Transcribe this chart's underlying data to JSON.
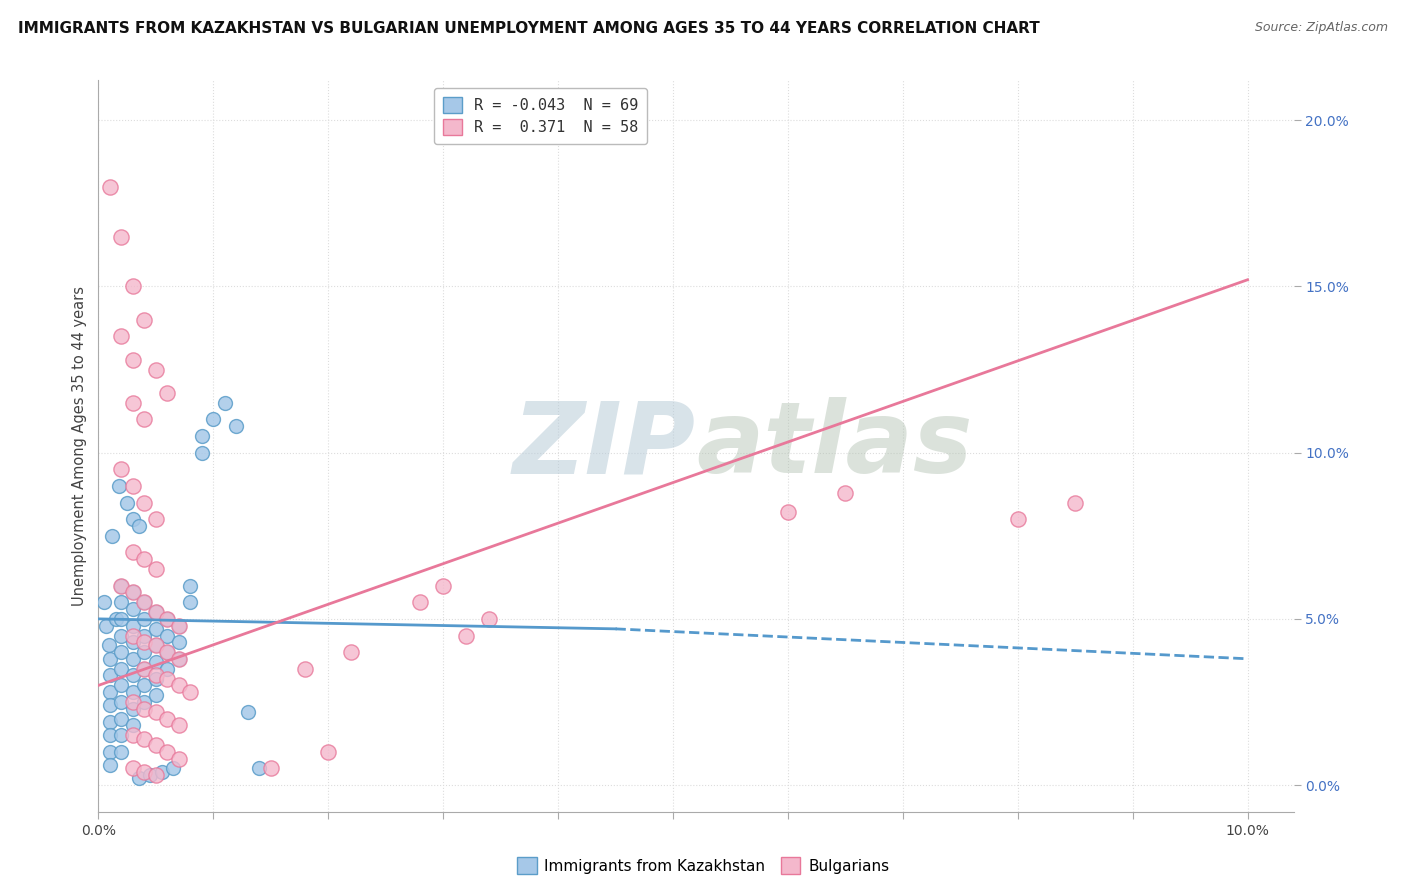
{
  "title": "IMMIGRANTS FROM KAZAKHSTAN VS BULGARIAN UNEMPLOYMENT AMONG AGES 35 TO 44 YEARS CORRELATION CHART",
  "source_text": "Source: ZipAtlas.com",
  "ylabel": "Unemployment Among Ages 35 to 44 years",
  "xlim": [
    0.0,
    0.104
  ],
  "ylim": [
    -0.008,
    0.212
  ],
  "xticks": [
    0.0,
    0.01,
    0.02,
    0.03,
    0.04,
    0.05,
    0.06,
    0.07,
    0.08,
    0.09,
    0.1
  ],
  "xtick_labels": [
    "0.0%",
    "",
    "",
    "",
    "",
    "",
    "",
    "",
    "",
    "",
    "10.0%"
  ],
  "yticks": [
    0.0,
    0.05,
    0.1,
    0.15,
    0.2
  ],
  "ytick_labels": [
    "0.0%",
    "5.0%",
    "10.0%",
    "15.0%",
    "20.0%"
  ],
  "r_blue": "-0.043",
  "n_blue": "69",
  "r_pink": "0.371",
  "n_pink": "58",
  "blue_scatter": [
    [
      0.0005,
      0.055
    ],
    [
      0.0007,
      0.048
    ],
    [
      0.0009,
      0.042
    ],
    [
      0.001,
      0.038
    ],
    [
      0.001,
      0.033
    ],
    [
      0.001,
      0.028
    ],
    [
      0.001,
      0.024
    ],
    [
      0.001,
      0.019
    ],
    [
      0.001,
      0.015
    ],
    [
      0.001,
      0.01
    ],
    [
      0.001,
      0.006
    ],
    [
      0.0015,
      0.05
    ],
    [
      0.002,
      0.06
    ],
    [
      0.002,
      0.055
    ],
    [
      0.002,
      0.05
    ],
    [
      0.002,
      0.045
    ],
    [
      0.002,
      0.04
    ],
    [
      0.002,
      0.035
    ],
    [
      0.002,
      0.03
    ],
    [
      0.002,
      0.025
    ],
    [
      0.002,
      0.02
    ],
    [
      0.002,
      0.015
    ],
    [
      0.002,
      0.01
    ],
    [
      0.003,
      0.058
    ],
    [
      0.003,
      0.053
    ],
    [
      0.003,
      0.048
    ],
    [
      0.003,
      0.043
    ],
    [
      0.003,
      0.038
    ],
    [
      0.003,
      0.033
    ],
    [
      0.003,
      0.028
    ],
    [
      0.003,
      0.023
    ],
    [
      0.003,
      0.018
    ],
    [
      0.004,
      0.055
    ],
    [
      0.004,
      0.05
    ],
    [
      0.004,
      0.045
    ],
    [
      0.004,
      0.04
    ],
    [
      0.004,
      0.035
    ],
    [
      0.004,
      0.03
    ],
    [
      0.004,
      0.025
    ],
    [
      0.005,
      0.052
    ],
    [
      0.005,
      0.047
    ],
    [
      0.005,
      0.042
    ],
    [
      0.005,
      0.037
    ],
    [
      0.005,
      0.032
    ],
    [
      0.005,
      0.027
    ],
    [
      0.006,
      0.05
    ],
    [
      0.006,
      0.045
    ],
    [
      0.006,
      0.04
    ],
    [
      0.006,
      0.035
    ],
    [
      0.007,
      0.048
    ],
    [
      0.007,
      0.043
    ],
    [
      0.007,
      0.038
    ],
    [
      0.008,
      0.06
    ],
    [
      0.008,
      0.055
    ],
    [
      0.009,
      0.105
    ],
    [
      0.009,
      0.1
    ],
    [
      0.01,
      0.11
    ],
    [
      0.011,
      0.115
    ],
    [
      0.012,
      0.108
    ],
    [
      0.013,
      0.022
    ],
    [
      0.014,
      0.005
    ],
    [
      0.0035,
      0.002
    ],
    [
      0.0045,
      0.003
    ],
    [
      0.0055,
      0.004
    ],
    [
      0.0065,
      0.005
    ],
    [
      0.0012,
      0.075
    ],
    [
      0.0018,
      0.09
    ],
    [
      0.0025,
      0.085
    ],
    [
      0.003,
      0.08
    ],
    [
      0.0035,
      0.078
    ]
  ],
  "pink_scatter": [
    [
      0.001,
      0.18
    ],
    [
      0.002,
      0.165
    ],
    [
      0.003,
      0.15
    ],
    [
      0.002,
      0.135
    ],
    [
      0.003,
      0.128
    ],
    [
      0.004,
      0.14
    ],
    [
      0.005,
      0.125
    ],
    [
      0.006,
      0.118
    ],
    [
      0.003,
      0.115
    ],
    [
      0.004,
      0.11
    ],
    [
      0.002,
      0.095
    ],
    [
      0.003,
      0.09
    ],
    [
      0.004,
      0.085
    ],
    [
      0.005,
      0.08
    ],
    [
      0.003,
      0.07
    ],
    [
      0.004,
      0.068
    ],
    [
      0.005,
      0.065
    ],
    [
      0.002,
      0.06
    ],
    [
      0.003,
      0.058
    ],
    [
      0.004,
      0.055
    ],
    [
      0.005,
      0.052
    ],
    [
      0.006,
      0.05
    ],
    [
      0.007,
      0.048
    ],
    [
      0.003,
      0.045
    ],
    [
      0.004,
      0.043
    ],
    [
      0.005,
      0.042
    ],
    [
      0.006,
      0.04
    ],
    [
      0.007,
      0.038
    ],
    [
      0.004,
      0.035
    ],
    [
      0.005,
      0.033
    ],
    [
      0.006,
      0.032
    ],
    [
      0.007,
      0.03
    ],
    [
      0.008,
      0.028
    ],
    [
      0.003,
      0.025
    ],
    [
      0.004,
      0.023
    ],
    [
      0.005,
      0.022
    ],
    [
      0.006,
      0.02
    ],
    [
      0.007,
      0.018
    ],
    [
      0.003,
      0.015
    ],
    [
      0.004,
      0.014
    ],
    [
      0.005,
      0.012
    ],
    [
      0.006,
      0.01
    ],
    [
      0.007,
      0.008
    ],
    [
      0.003,
      0.005
    ],
    [
      0.004,
      0.004
    ],
    [
      0.005,
      0.003
    ],
    [
      0.06,
      0.082
    ],
    [
      0.065,
      0.088
    ],
    [
      0.08,
      0.08
    ],
    [
      0.085,
      0.085
    ],
    [
      0.034,
      0.05
    ],
    [
      0.032,
      0.045
    ],
    [
      0.028,
      0.055
    ],
    [
      0.03,
      0.06
    ],
    [
      0.022,
      0.04
    ],
    [
      0.018,
      0.035
    ],
    [
      0.015,
      0.005
    ],
    [
      0.02,
      0.01
    ]
  ],
  "blue_line_x": [
    0.0,
    0.045,
    0.1
  ],
  "blue_line_y": [
    0.05,
    0.047,
    0.038
  ],
  "pink_line_x": [
    0.0,
    0.1
  ],
  "pink_line_y": [
    0.03,
    0.152
  ],
  "watermark_zip": "ZIP",
  "watermark_atlas": "atlas",
  "blue_color": "#a6c8e8",
  "pink_color": "#f4b8cc",
  "blue_edge": "#5b9dc9",
  "pink_edge": "#e8789a",
  "blue_line_color": "#5599cc",
  "pink_line_color": "#e8789a",
  "background_color": "#ffffff",
  "grid_color": "#dddddd",
  "ytick_color": "#4472c4",
  "xtick_color": "#444444",
  "title_fontsize": 11,
  "label_fontsize": 10.5,
  "tick_fontsize": 10,
  "watermark_color": "#c5d5e5",
  "watermark_alpha": 0.6
}
